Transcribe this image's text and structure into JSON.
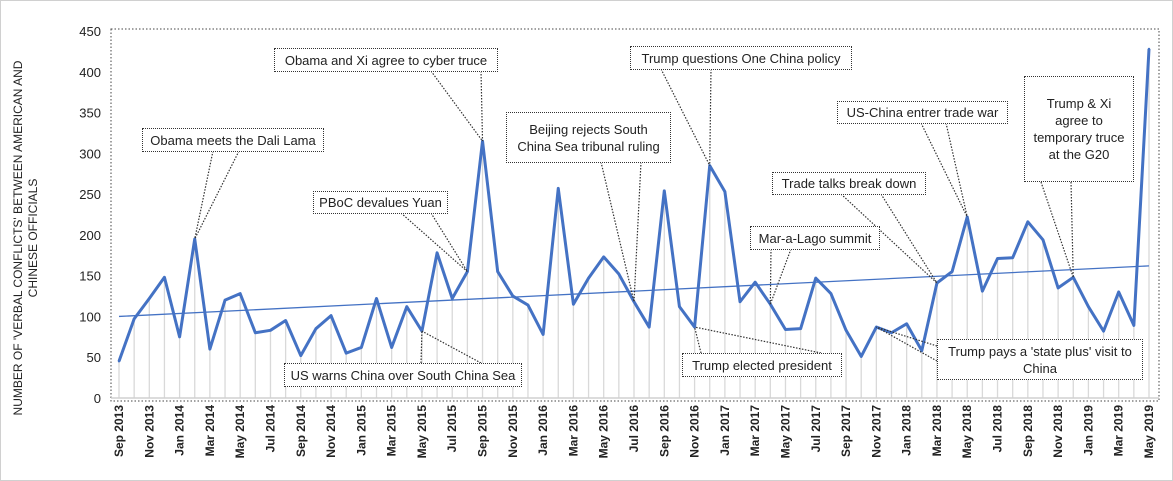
{
  "chart_data": {
    "type": "line",
    "ylabel": "NUMBER OF 'VERBAL CONFLICTS' BETWEEN AMERICAN AND CHINESE OFFICIALS",
    "ylim": [
      0,
      450
    ],
    "yticks": [
      0,
      50,
      100,
      150,
      200,
      250,
      300,
      350,
      400,
      450
    ],
    "x": [
      "Sep 2013",
      "Oct 2013",
      "Nov 2013",
      "Dec 2013",
      "Jan 2014",
      "Feb 2014",
      "Mar 2014",
      "Apr 2014",
      "May 2014",
      "Jun 2014",
      "Jul 2014",
      "Aug 2014",
      "Sep 2014",
      "Oct 2014",
      "Nov 2014",
      "Dec 2014",
      "Jan 2015",
      "Feb 2015",
      "Mar 2015",
      "Apr 2015",
      "May 2015",
      "Jun 2015",
      "Jul 2015",
      "Aug 2015",
      "Sep 2015",
      "Oct 2015",
      "Nov 2015",
      "Dec 2015",
      "Jan 2016",
      "Feb 2016",
      "Mar 2016",
      "Apr 2016",
      "May 2016",
      "Jun 2016",
      "Jul 2016",
      "Aug 2016",
      "Sep 2016",
      "Oct 2016",
      "Nov 2016",
      "Dec 2016",
      "Jan 2017",
      "Feb 2017",
      "Mar 2017",
      "Apr 2017",
      "May 2017",
      "Jun 2017",
      "Jul 2017",
      "Aug 2017",
      "Sep 2017",
      "Oct 2017",
      "Nov 2017",
      "Dec 2017",
      "Jan 2018",
      "Feb 2018",
      "Mar 2018",
      "Apr 2018",
      "May 2018",
      "Jun 2018",
      "Jul 2018",
      "Aug 2018",
      "Sep 2018",
      "Oct 2018",
      "Nov 2018",
      "Dec 2018",
      "Jan 2019",
      "Feb 2019",
      "Mar 2019",
      "Apr 2019",
      "May 2019"
    ],
    "xtick_labels": [
      "Sep 2013",
      "Nov 2013",
      "Jan 2014",
      "Mar 2014",
      "May 2014",
      "Jul 2014",
      "Sep 2014",
      "Nov 2014",
      "Jan 2015",
      "Mar 2015",
      "May 2015",
      "Jul 2015",
      "Sep 2015",
      "Nov 2015",
      "Jan 2016",
      "Mar 2016",
      "May 2016",
      "Jul 2016",
      "Sep 2016",
      "Nov 2016",
      "Jan 2017",
      "Mar 2017",
      "May 2017",
      "Jul 2017",
      "Sep 2017",
      "Nov 2017",
      "Jan 2018",
      "Mar 2018",
      "May 2018",
      "Jul 2018",
      "Sep 2018",
      "Nov 2018",
      "Jan 2019",
      "Mar 2019",
      "May 2019"
    ],
    "values": [
      45,
      97,
      122,
      148,
      75,
      195,
      60,
      120,
      128,
      80,
      83,
      95,
      52,
      85,
      101,
      55,
      62,
      122,
      62,
      112,
      82,
      178,
      122,
      155,
      315,
      155,
      125,
      114,
      78,
      257,
      115,
      147,
      173,
      152,
      118,
      87,
      254,
      112,
      87,
      285,
      253,
      118,
      142,
      115,
      84,
      85,
      147,
      128,
      83,
      51,
      87,
      80,
      91,
      58,
      141,
      155,
      222,
      131,
      171,
      172,
      216,
      194,
      135,
      148,
      112,
      82,
      130,
      89,
      428
    ],
    "trendline": {
      "type": "linear",
      "start": 100,
      "end": 162
    },
    "drop_lines": true,
    "grid": false,
    "colors": {
      "line": "#4472C4",
      "trend": "#4472C4",
      "drop": "#d9d9d9"
    },
    "annotations": [
      {
        "text": "Obama meets the Dali Lama",
        "month": "Feb 2014"
      },
      {
        "text": "Obama and Xi agree to cyber truce",
        "month": "Sep 2015"
      },
      {
        "text": "PBoC devalues Yuan",
        "month": "Aug 2015"
      },
      {
        "text": "US warns China over South China Sea",
        "month": "May 2015"
      },
      {
        "text": "Beijing rejects South China Sea tribunal ruling",
        "month": "Jul 2016"
      },
      {
        "text": "Trump questions One China policy",
        "month": "Dec 2016"
      },
      {
        "text": "Trump elected president",
        "month": "Nov 2016"
      },
      {
        "text": "Mar-a-Lago summit",
        "month": "Apr 2017"
      },
      {
        "text": "Trade talks break down",
        "month": "Mar 2018"
      },
      {
        "text": "US-China entrer trade war",
        "month": "May 2018"
      },
      {
        "text": "Trump & Xi agree to temporary truce at the G20",
        "month": "Dec 2018"
      },
      {
        "text": "Trump pays a 'state plus' visit to China",
        "month": "Nov 2017"
      }
    ]
  }
}
